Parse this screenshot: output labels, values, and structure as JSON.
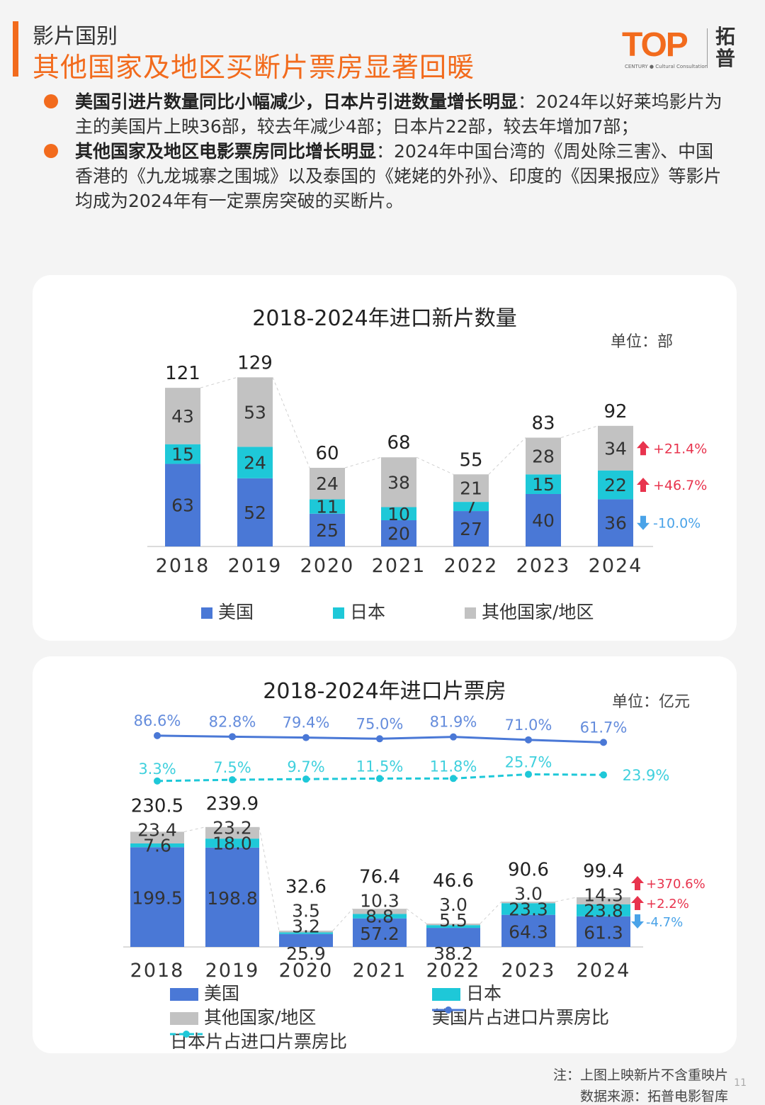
{
  "header": {
    "section": "影片国别",
    "title": "其他国家及地区买断片票房显著回暖",
    "logo_word": "TOP",
    "logo_sub": "CENTURY ● Cultural Consultation",
    "logo_cn": "拓普"
  },
  "bullets": [
    {
      "lead": "美国引进片数量同比小幅减少，日本片引进数量增长明显",
      "text": "：2024年以好莱坞影片为主的美国片上映36部，较去年减少4部；日本片22部，较去年增加7部；"
    },
    {
      "lead": "其他国家及地区电影票房同比增长明显",
      "text": "：2024年中国台湾的《周处除三害》、中国香港的《九龙城寨之围城》以及泰国的《姥姥的外孙》、印度的《因果报应》等影片均成为2024年有一定票房突破的买断片。"
    }
  ],
  "colors": {
    "accent": "#f26b1d",
    "usa": "#4a78d6",
    "japan": "#1ec8d8",
    "other": "#c2c2c2",
    "up": "#e8344e",
    "down": "#4aa3e8"
  },
  "chart_data": [
    {
      "type": "bar",
      "stacked": true,
      "title": "2018-2024年进口新片数量",
      "unit": "单位：部",
      "categories": [
        "2018",
        "2019",
        "2020",
        "2021",
        "2022",
        "2023",
        "2024"
      ],
      "series": [
        {
          "name": "美国",
          "values": [
            63,
            52,
            25,
            20,
            27,
            40,
            36
          ]
        },
        {
          "name": "日本",
          "values": [
            15,
            24,
            11,
            10,
            7,
            15,
            22
          ]
        },
        {
          "name": "其他国家/地区",
          "values": [
            43,
            53,
            24,
            38,
            21,
            28,
            34
          ]
        }
      ],
      "totals": [
        121,
        129,
        60,
        68,
        55,
        83,
        92
      ],
      "changes": [
        {
          "series": "其他国家/地区",
          "label": "+21.4%",
          "dir": "up"
        },
        {
          "series": "日本",
          "label": "+46.7%",
          "dir": "up"
        },
        {
          "series": "美国",
          "label": "-10.0%",
          "dir": "down"
        }
      ]
    },
    {
      "type": "bar",
      "stacked": true,
      "title": "2018-2024年进口片票房",
      "unit": "单位：亿元",
      "categories": [
        "2018",
        "2019",
        "2020",
        "2021",
        "2022",
        "2023",
        "2024"
      ],
      "series": [
        {
          "name": "美国",
          "values": [
            199.5,
            198.8,
            25.9,
            57.2,
            38.2,
            64.3,
            61.3
          ],
          "labels": [
            "199.5",
            "198.8",
            "25.9",
            "57.2",
            "38.2",
            "64.3",
            "61.3"
          ]
        },
        {
          "name": "日本",
          "values": [
            7.6,
            18.0,
            3.2,
            8.8,
            5.5,
            23.3,
            23.8
          ],
          "labels": [
            "7.6",
            "18.0",
            "3.2",
            "8.8",
            "5.5",
            "23.3",
            "23.8"
          ]
        },
        {
          "name": "其他国家/地区",
          "values": [
            23.4,
            23.2,
            3.5,
            10.3,
            3.0,
            3.0,
            14.3
          ],
          "labels": [
            "23.4",
            "23.2",
            "3.5",
            "10.3",
            "3.0",
            "3.0",
            "14.3"
          ]
        }
      ],
      "totals": [
        "230.5",
        "239.9",
        "32.6",
        "76.4",
        "46.6",
        "90.6",
        "99.4"
      ],
      "lines": [
        {
          "name": "美国片占进口片票房比",
          "values": [
            86.6,
            82.8,
            79.4,
            75.0,
            81.9,
            71.0,
            61.7
          ],
          "labels": [
            "86.6%",
            "82.8%",
            "79.4%",
            "75.0%",
            "81.9%",
            "71.0%",
            "61.7%"
          ]
        },
        {
          "name": "日本片占进口片票房比",
          "values": [
            3.3,
            7.5,
            9.7,
            11.5,
            11.8,
            25.7,
            23.9
          ],
          "labels": [
            "3.3%",
            "7.5%",
            "9.7%",
            "11.5%",
            "11.8%",
            "25.7%",
            "23.9%"
          ]
        }
      ],
      "changes": [
        {
          "series": "其他国家/地区",
          "label": "+370.6%",
          "dir": "up"
        },
        {
          "series": "日本",
          "label": "+2.2%",
          "dir": "up"
        },
        {
          "series": "美国",
          "label": "-4.7%",
          "dir": "down"
        }
      ]
    }
  ],
  "footer": {
    "note": "注：上图上映新片不含重映片",
    "source": "数据来源：拓普电影智库",
    "page": "11"
  }
}
